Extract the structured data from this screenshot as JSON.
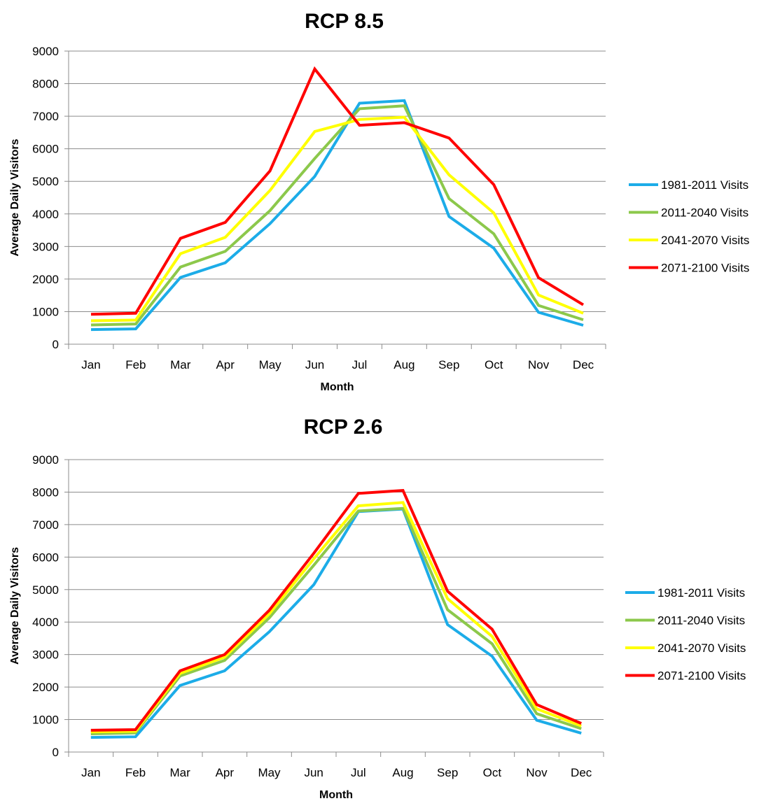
{
  "chart_data": [
    {
      "type": "line",
      "title": "RCP 8.5",
      "xlabel": "Month",
      "ylabel": "Average Daily Visitors",
      "ylim": [
        0,
        9000
      ],
      "yticks": [
        0,
        1000,
        2000,
        3000,
        4000,
        5000,
        6000,
        7000,
        8000,
        9000
      ],
      "grid": true,
      "legend": "right",
      "categories": [
        "Jan",
        "Feb",
        "Mar",
        "Apr",
        "May",
        "Jun",
        "Jul",
        "Aug",
        "Sep",
        "Oct",
        "Nov",
        "Dec"
      ],
      "series": [
        {
          "name": "1981-2011 Visits",
          "color": "#1cace8",
          "values": [
            450,
            470,
            2050,
            2500,
            3700,
            5150,
            7400,
            7480,
            3920,
            2950,
            980,
            580
          ]
        },
        {
          "name": "2011-2040 Visits",
          "color": "#8cc84b",
          "values": [
            590,
            620,
            2370,
            2850,
            4100,
            5700,
            7230,
            7320,
            4470,
            3390,
            1190,
            750
          ]
        },
        {
          "name": "2041-2070 Visits",
          "color": "#ffff00",
          "values": [
            720,
            740,
            2780,
            3280,
            4720,
            6530,
            6900,
            6970,
            5200,
            4030,
            1510,
            950
          ]
        },
        {
          "name": "2071-2100 Visits",
          "color": "#ff0000",
          "values": [
            920,
            950,
            3250,
            3740,
            5320,
            8450,
            6720,
            6800,
            6330,
            4900,
            2040,
            1210
          ]
        }
      ]
    },
    {
      "type": "line",
      "title": "RCP 2.6",
      "xlabel": "Month",
      "ylabel": "Average Daily Visitors",
      "ylim": [
        0,
        9000
      ],
      "yticks": [
        0,
        1000,
        2000,
        3000,
        4000,
        5000,
        6000,
        7000,
        8000,
        9000
      ],
      "grid": true,
      "legend": "right",
      "categories": [
        "Jan",
        "Feb",
        "Mar",
        "Apr",
        "May",
        "Jun",
        "Jul",
        "Aug",
        "Sep",
        "Oct",
        "Nov",
        "Dec"
      ],
      "series": [
        {
          "name": "1981-2011 Visits",
          "color": "#1cace8",
          "values": [
            450,
            470,
            2050,
            2500,
            3700,
            5150,
            7400,
            7480,
            3920,
            2950,
            980,
            580
          ]
        },
        {
          "name": "2011-2040 Visits",
          "color": "#8cc84b",
          "values": [
            560,
            590,
            2340,
            2820,
            4130,
            5750,
            7420,
            7500,
            4380,
            3330,
            1180,
            720
          ]
        },
        {
          "name": "2041-2070 Visits",
          "color": "#ffff00",
          "values": [
            620,
            640,
            2420,
            2920,
            4250,
            5950,
            7580,
            7680,
            4720,
            3560,
            1330,
            800
          ]
        },
        {
          "name": "2071-2100 Visits",
          "color": "#ff0000",
          "values": [
            670,
            690,
            2500,
            3000,
            4360,
            6120,
            7960,
            8050,
            4950,
            3780,
            1460,
            880
          ]
        }
      ]
    }
  ]
}
